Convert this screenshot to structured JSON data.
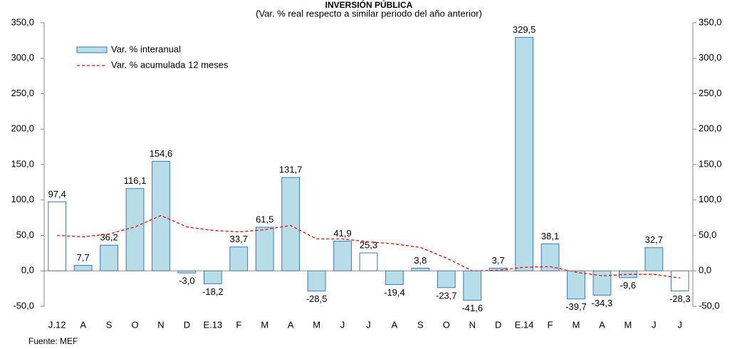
{
  "chart_data": {
    "type": "bar",
    "title": "INVERSIÓN PÚBLICA",
    "subtitle": "(Var. % real respecto a similar periodo del año anterior)",
    "source": "Fuente: MEF",
    "categories": [
      "J.12",
      "A",
      "S",
      "O",
      "N",
      "D",
      "E.13",
      "F",
      "M",
      "A",
      "M",
      "J",
      "J",
      "A",
      "S",
      "O",
      "N",
      "D",
      "E.14",
      "F",
      "M",
      "A",
      "M",
      "J",
      "J"
    ],
    "series": [
      {
        "name": "Var. % interanual",
        "type": "bar",
        "color": "#b7dde8",
        "edge_color": "#3a78c0",
        "colors": [
          "#ffffff",
          "#b7dde8",
          "#b7dde8",
          "#b7dde8",
          "#b7dde8",
          "#b7dde8",
          "#b7dde8",
          "#b7dde8",
          "#b7dde8",
          "#b7dde8",
          "#b7dde8",
          "#b7dde8",
          "#ffffff",
          "#b7dde8",
          "#b7dde8",
          "#b7dde8",
          "#b7dde8",
          "#b7dde8",
          "#b7dde8",
          "#b7dde8",
          "#b7dde8",
          "#b7dde8",
          "#b7dde8",
          "#b7dde8",
          "#ffffff"
        ],
        "values": [
          97.4,
          7.7,
          36.2,
          116.1,
          154.6,
          -3.0,
          -18.2,
          33.7,
          61.5,
          131.7,
          -28.5,
          41.9,
          25.3,
          -19.4,
          3.8,
          -23.7,
          -41.6,
          3.7,
          329.5,
          38.1,
          -39.7,
          -34.3,
          -9.6,
          32.7,
          -28.3
        ],
        "value_labels": [
          "97,4",
          "7,7",
          "36,2",
          "116,1",
          "154,6",
          "-3,0",
          "-18,2",
          "33,7",
          "61,5",
          "131,7",
          "-28,5",
          "41,9",
          "25,3",
          "-19,4",
          "3,8",
          "-23,7",
          "-41,6",
          "3,7",
          "329,5",
          "38,1",
          "-39,7",
          "-34,3",
          "-9,6",
          "32,7",
          "-28,3"
        ]
      },
      {
        "name": "Var. % acumulada 12 meses",
        "type": "line",
        "color": "#ff0000",
        "values": [
          50,
          48,
          52,
          62,
          78,
          62,
          57,
          55,
          58,
          64,
          45,
          45,
          41,
          38,
          33,
          18,
          0,
          1,
          5,
          6,
          -2,
          -7,
          -5,
          -5,
          -10
        ]
      }
    ],
    "ylim": [
      -50,
      350
    ],
    "yticks": [
      {
        "value": -50,
        "label": "-50,0"
      },
      {
        "value": 0,
        "label": "0,0"
      },
      {
        "value": 50,
        "label": "50,0"
      },
      {
        "value": 100,
        "label": "100,0"
      },
      {
        "value": 150,
        "label": "150,0"
      },
      {
        "value": 200,
        "label": "200,0"
      },
      {
        "value": 250,
        "label": "250,0"
      },
      {
        "value": 300,
        "label": "300,0"
      },
      {
        "value": 350,
        "label": "350,0"
      }
    ],
    "y2lim": [
      -50,
      350
    ],
    "y2ticks": [
      {
        "value": -50,
        "label": "-50,0"
      },
      {
        "value": 0,
        "label": "0,0"
      },
      {
        "value": 50,
        "label": "50,0"
      },
      {
        "value": 100,
        "label": "100,0"
      },
      {
        "value": 150,
        "label": "150,0"
      },
      {
        "value": 200,
        "label": "200,0"
      },
      {
        "value": 250,
        "label": "250,0"
      },
      {
        "value": 300,
        "label": "300,0"
      },
      {
        "value": 350,
        "label": "350,0"
      }
    ],
    "grid": false
  }
}
